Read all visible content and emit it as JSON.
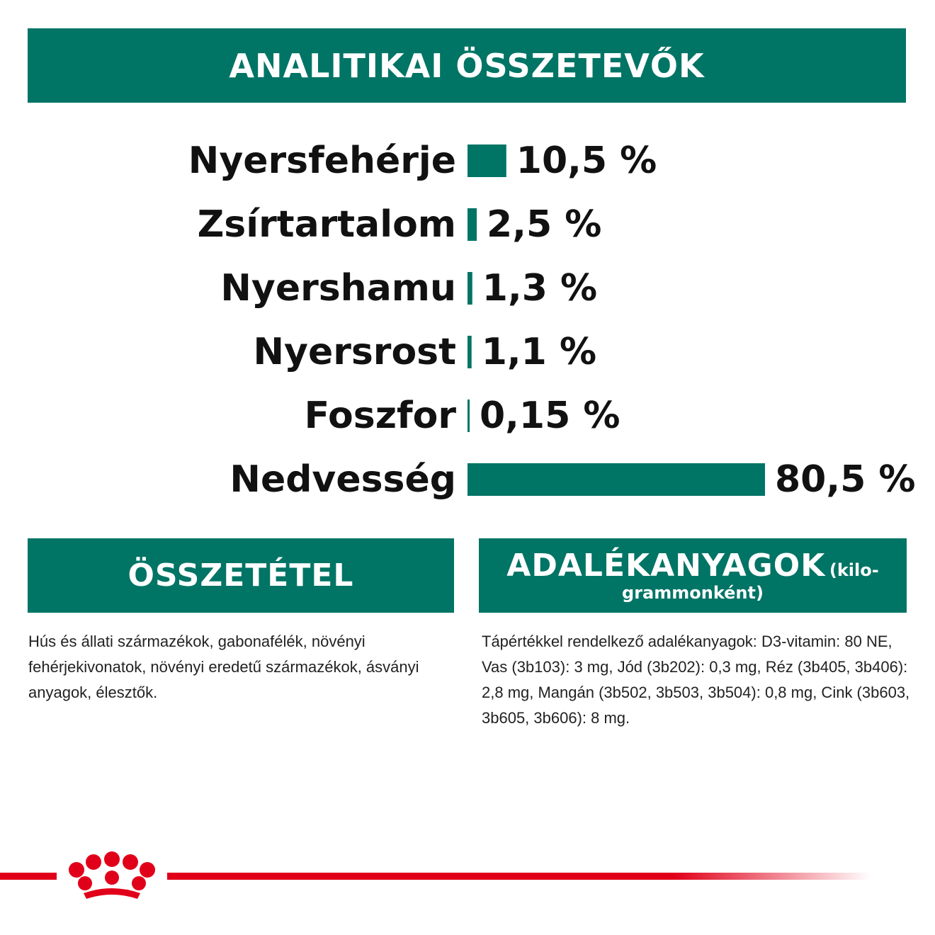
{
  "header": {
    "title": "ANALITIKAI ÖSSZETEVŐK"
  },
  "chart_data": {
    "type": "bar",
    "orientation": "horizontal",
    "categories": [
      "Nyersfehérje",
      "Zsírtartalom",
      "Nyershamu",
      "Nyersrost",
      "Foszfor",
      "Nedvesség"
    ],
    "values": [
      10.5,
      2.5,
      1.3,
      1.1,
      0.15,
      80.5
    ],
    "value_labels": [
      "10,5 %",
      "2,5 %",
      "1,3 %",
      "1,1 %",
      "0,15 %",
      "80,5 %"
    ],
    "unit": "%",
    "bar_color": "#007465",
    "grid": false,
    "axes_visible": false
  },
  "composition": {
    "heading": "ÖSSZETÉTEL",
    "text": "Hús és állati származékok, gabonafélék, növényi fehérjekivonatok, növényi eredetű származékok, ásványi anyagok, élesztők."
  },
  "additives": {
    "heading": "ADALÉKANYAGOK",
    "heading_small_1": "(kilo-",
    "heading_small_2": "grammonként)",
    "text": "Tápértékkel rendelkező adalékanyagok: D3-vitamin: 80 NE, Vas (3b103): 3 mg, Jód (3b202): 0,3 mg, Réz (3b405, 3b406): 2,8 mg, Mangán (3b502, 3b503, 3b504): 0,8 mg, Cink (3b603, 3b605, 3b606): 8 mg."
  },
  "brand": {
    "logo_icon": "crown-icon",
    "color": "#e1001a"
  },
  "colors": {
    "accent": "#007465",
    "text": "#111111",
    "brand_red": "#e1001a"
  }
}
